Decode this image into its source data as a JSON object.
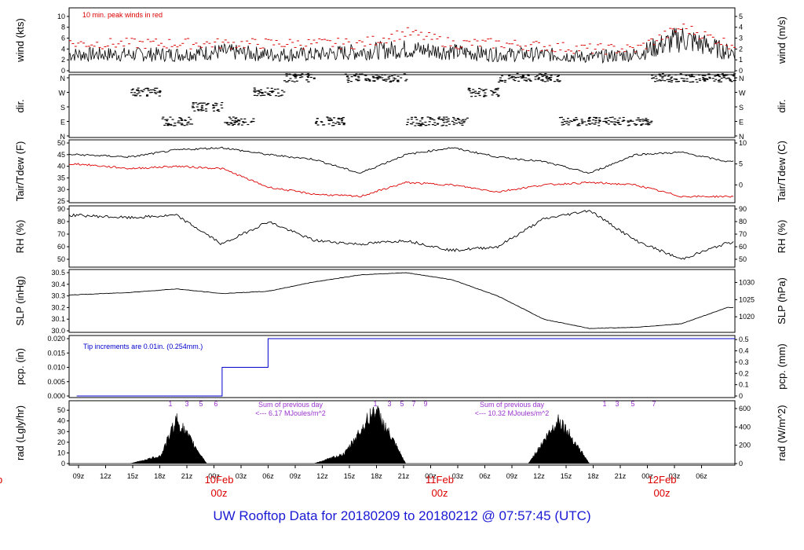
{
  "title": "UW Rooftop Data for 20180209  to  20180212 @ 07:57:45  (UTC)",
  "colors": {
    "black": "#000000",
    "red": "#dd0000",
    "blue": "#0000cc",
    "purple": "#9933cc",
    "title_blue": "#1a1ad4"
  },
  "date_marks": [
    {
      "label": "eb",
      "z": "z",
      "x_hours": -11
    },
    {
      "label": "10Feb",
      "z": "00z",
      "x_hours": 24
    },
    {
      "label": "11Feb",
      "z": "00z",
      "x_hours": 48
    },
    {
      "label": "12Feb",
      "z": "00z",
      "x_hours": 72
    }
  ],
  "chart_data": [
    {
      "type": "line",
      "panel": "wind",
      "ylabel": "wind (kts)",
      "ylabel_right": "wind (m/s)",
      "ylim": [
        0,
        11
      ],
      "yticks": [
        0,
        2,
        4,
        6,
        8,
        10
      ],
      "yticks_right": [
        0,
        1,
        2,
        3,
        4,
        5
      ],
      "annotation": "10 min. peak winds in red",
      "x_hours": [
        0,
        6,
        12,
        18,
        24,
        30,
        36,
        42,
        48,
        54,
        60,
        66,
        72,
        78
      ],
      "series": [
        {
          "name": "wind",
          "values": [
            3,
            3,
            3.5,
            3,
            3,
            3.5,
            4,
            3.5,
            3,
            3,
            2.5,
            3,
            6,
            3.5
          ]
        },
        {
          "name": "10 min. peak winds",
          "values": [
            5,
            5,
            5,
            5,
            5,
            5,
            7,
            5,
            5,
            4.5,
            4,
            4,
            8,
            5
          ]
        }
      ]
    },
    {
      "type": "scatter",
      "panel": "dir",
      "ylabel": "dir.",
      "ylabel_right": "dir.",
      "yticks": [
        "N",
        "E",
        "S",
        "W",
        "N"
      ],
      "x_hours": [
        0,
        4,
        8,
        12,
        16,
        20,
        24,
        28,
        32,
        36,
        40,
        44,
        48,
        52,
        56,
        60,
        64,
        68,
        72,
        76
      ],
      "values": [
        "W",
        "E",
        "S",
        "E",
        "W",
        "N",
        "E",
        "N",
        "N",
        "E",
        "E",
        "W",
        "N",
        "N",
        "E",
        "E",
        "E",
        "N",
        "N",
        "N"
      ]
    },
    {
      "type": "line",
      "panel": "temp",
      "ylabel": "Tair/Tdew (F)",
      "ylabel_right": "Tair/Tdew (C)",
      "ylim": [
        25,
        50
      ],
      "yticks": [
        25,
        30,
        35,
        40,
        45,
        50
      ],
      "yticks_right": [
        0,
        5,
        10
      ],
      "x_hours": [
        -7,
        0,
        6,
        12,
        18,
        24,
        30,
        36,
        42,
        48,
        54,
        60,
        66,
        72,
        78
      ],
      "series": [
        {
          "name": "Tair",
          "values": [
            45,
            44,
            47,
            48,
            45,
            43,
            37,
            45,
            48,
            44,
            42,
            37,
            45,
            46,
            42
          ]
        },
        {
          "name": "Tdew",
          "values": [
            41,
            39,
            40,
            39,
            31,
            28,
            27,
            33,
            32,
            29,
            32,
            33,
            32,
            27,
            27
          ]
        }
      ]
    },
    {
      "type": "line",
      "panel": "rh",
      "ylabel": "RH (%)",
      "ylabel_right": "RH (%)",
      "ylim": [
        45,
        90
      ],
      "yticks": [
        50,
        60,
        70,
        80,
        90
      ],
      "x_hours": [
        -7,
        0,
        6,
        12,
        18,
        24,
        30,
        36,
        42,
        48,
        54,
        60,
        66,
        72,
        78
      ],
      "values": [
        85,
        83,
        85,
        62,
        80,
        65,
        62,
        65,
        57,
        60,
        82,
        89,
        65,
        50,
        63
      ]
    },
    {
      "type": "line",
      "panel": "slp",
      "ylabel": "SLP (inHg)",
      "ylabel_right": "SLP (hPa)",
      "ylim": [
        30.0,
        30.5
      ],
      "yticks": [
        30.0,
        30.1,
        30.2,
        30.3,
        30.4,
        30.5
      ],
      "yticks_right": [
        1020,
        1025,
        1030
      ],
      "x_hours": [
        -7,
        0,
        6,
        12,
        18,
        24,
        30,
        36,
        42,
        48,
        54,
        60,
        66,
        72,
        78
      ],
      "values": [
        30.31,
        30.33,
        30.36,
        30.32,
        30.34,
        30.42,
        30.48,
        30.5,
        30.44,
        30.3,
        30.1,
        30.02,
        30.03,
        30.06,
        30.2
      ]
    },
    {
      "type": "line",
      "panel": "pcp",
      "ylabel": "pcp. (in)",
      "ylabel_right": "pcp. (mm)",
      "ylim": [
        0,
        0.02
      ],
      "yticks": [
        0.0,
        0.005,
        0.01,
        0.015,
        0.02
      ],
      "yticks_right": [
        0,
        0.1,
        0.2,
        0.3,
        0.4,
        0.5
      ],
      "annotation": "Tip increments are 0.01in. (0.254mm.)",
      "x_hours": [
        -7,
        12,
        12,
        18,
        18,
        79
      ],
      "values": [
        0,
        0,
        0.01,
        0.01,
        0.02,
        0.02
      ]
    },
    {
      "type": "area",
      "panel": "rad",
      "ylabel": "rad (Lgly/hr)",
      "ylabel_right": "rad (W/m^2)",
      "ylim": [
        0,
        56
      ],
      "yticks": [
        0,
        10,
        20,
        30,
        40,
        50
      ],
      "yticks_right": [
        0,
        200,
        400,
        600
      ],
      "x_hours": [
        -7,
        0,
        4,
        6,
        10,
        24,
        28,
        32,
        36,
        48,
        52,
        56,
        60,
        72,
        76
      ],
      "values": [
        0,
        0,
        8,
        45,
        0,
        0,
        10,
        55,
        0,
        0,
        0,
        45,
        0,
        0,
        0
      ],
      "annotations": [
        "Sum of previous day\n<--- 6.17 MJoules/m^2",
        "Sum of previous day\n<--- 10.32 MJoules/m^2"
      ],
      "hour_marks": [
        "1",
        "3",
        "5",
        "6",
        "1",
        "3",
        "5",
        "7",
        "9",
        "1",
        "3",
        "5",
        "7"
      ]
    }
  ],
  "x_axis": {
    "ticks": [
      "09z",
      "12z",
      "15z",
      "18z",
      "21z",
      "00z",
      "03z",
      "06z",
      "09z",
      "12z",
      "15z",
      "18z",
      "21z",
      "00z",
      "03z",
      "06z",
      "09z",
      "12z",
      "15z",
      "18z",
      "21z",
      "00z",
      "03z",
      "06z"
    ],
    "tick_hours": [
      -6,
      -3,
      0,
      3,
      6,
      9,
      12,
      15,
      18,
      21,
      24,
      27,
      30,
      33,
      36,
      39,
      42,
      45,
      48,
      51,
      54,
      57,
      60,
      63
    ]
  }
}
